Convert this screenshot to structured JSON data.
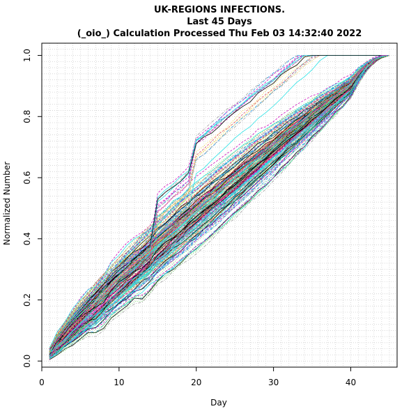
{
  "chart_data": {
    "type": "line",
    "title_lines": [
      "UK-REGIONS INFECTIONS.",
      "Last 45 Days",
      "(_oio_) Calculation Processed  Thu Feb 03 14:32:40 2022"
    ],
    "xlabel": "Day",
    "ylabel": "Normalized Number",
    "xlim": [
      0,
      46
    ],
    "ylim": [
      -0.02,
      1.04
    ],
    "x_ticks": [
      0,
      10,
      20,
      30,
      40
    ],
    "y_ticks": [
      0.0,
      0.2,
      0.4,
      0.6,
      0.8,
      1.0
    ],
    "x_tick_labels": [
      "0",
      "10",
      "20",
      "30",
      "40"
    ],
    "y_tick_labels": [
      "0.0",
      "0.2",
      "0.4",
      "0.6",
      "0.8",
      "1.0"
    ],
    "grid": true,
    "legend": "none",
    "days": 45,
    "series_count": 200,
    "series_colors": [
      "#000000",
      "#DF536B",
      "#61D04F",
      "#2297E6",
      "#28E2E5",
      "#CD0BBC",
      "#F5C710",
      "#9E9E9E"
    ]
  }
}
